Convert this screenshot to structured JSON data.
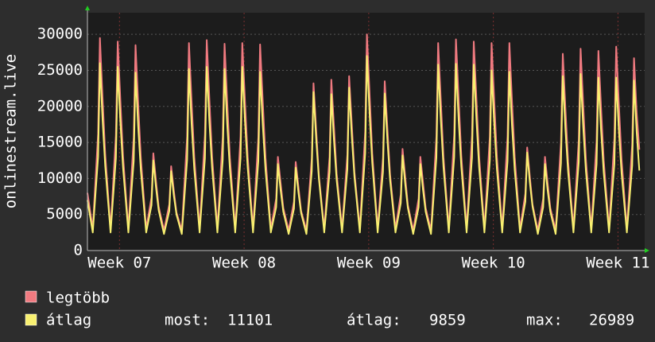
{
  "chart_data": {
    "type": "line",
    "ylabel": "onlinestream.live",
    "xlim": [
      0,
      31.3
    ],
    "ylim": [
      0,
      33000
    ],
    "yticks": [
      0,
      5000,
      10000,
      15000,
      20000,
      25000,
      30000
    ],
    "xticks": [
      {
        "value": 1.8,
        "label": "Week 07"
      },
      {
        "value": 8.8,
        "label": "Week 08"
      },
      {
        "value": 15.8,
        "label": "Week 09"
      },
      {
        "value": 22.8,
        "label": "Week 10"
      },
      {
        "value": 29.8,
        "label": "Week 11"
      }
    ],
    "grid": true,
    "x": [
      0,
      0.3,
      0.6,
      0.7,
      0.85,
      1,
      1.3,
      1.6,
      1.7,
      1.85,
      2,
      2.3,
      2.6,
      2.7,
      2.85,
      3,
      3.3,
      3.6,
      3.7,
      3.85,
      4,
      4.3,
      4.6,
      4.7,
      4.85,
      5,
      5.3,
      5.6,
      5.7,
      5.85,
      6,
      6.3,
      6.6,
      6.7,
      6.85,
      7,
      7.3,
      7.6,
      7.7,
      7.85,
      8,
      8.3,
      8.6,
      8.7,
      8.85,
      9,
      9.3,
      9.6,
      9.7,
      9.85,
      10,
      10.3,
      10.6,
      10.7,
      10.85,
      11,
      11.3,
      11.6,
      11.7,
      11.85,
      12,
      12.3,
      12.6,
      12.7,
      12.85,
      13,
      13.3,
      13.6,
      13.7,
      13.85,
      14,
      14.3,
      14.6,
      14.7,
      14.85,
      15,
      15.3,
      15.6,
      15.7,
      15.85,
      16,
      16.3,
      16.6,
      16.7,
      16.85,
      17,
      17.3,
      17.6,
      17.7,
      17.85,
      18,
      18.3,
      18.6,
      18.7,
      18.85,
      19,
      19.3,
      19.6,
      19.7,
      19.85,
      20,
      20.3,
      20.6,
      20.7,
      20.85,
      21,
      21.3,
      21.6,
      21.7,
      21.85,
      22,
      22.3,
      22.6,
      22.7,
      22.85,
      23,
      23.3,
      23.6,
      23.7,
      23.85,
      24,
      24.3,
      24.6,
      24.7,
      24.85,
      25,
      25.3,
      25.6,
      25.7,
      25.85,
      26,
      26.3,
      26.6,
      26.7,
      26.85,
      27,
      27.3,
      27.6,
      27.7,
      27.85,
      28,
      28.3,
      28.6,
      28.7,
      28.85,
      29,
      29.3,
      29.6,
      29.7,
      29.85,
      30,
      30.3,
      30.6,
      30.7,
      30.85,
      31
    ],
    "series": [
      {
        "name": "legtöbb",
        "color": "#f07a80",
        "values": [
          8000,
          3000,
          16200,
          29500,
          21200,
          13300,
          3000,
          16000,
          29000,
          20900,
          13100,
          3000,
          15700,
          28500,
          20500,
          12800,
          3000,
          7400,
          13500,
          9700,
          6100,
          2800,
          6400,
          11700,
          8400,
          5300,
          2800,
          15800,
          28800,
          20700,
          13000,
          3000,
          16100,
          29200,
          21000,
          13100,
          3000,
          15800,
          28700,
          20700,
          12900,
          3000,
          15800,
          28800,
          20700,
          13000,
          3000,
          15700,
          28600,
          20600,
          12900,
          3000,
          7200,
          13000,
          9400,
          5900,
          2800,
          6800,
          12300,
          8900,
          5500,
          2800,
          12800,
          23200,
          16700,
          10400,
          3000,
          13000,
          23700,
          17100,
          10700,
          3000,
          13300,
          24200,
          17400,
          10900,
          3000,
          16500,
          30000,
          21600,
          13500,
          3000,
          12900,
          23500,
          16900,
          10600,
          3000,
          7800,
          14100,
          10200,
          6300,
          2800,
          7200,
          13000,
          9400,
          5900,
          2800,
          15800,
          28800,
          20700,
          13000,
          3000,
          16100,
          29300,
          21100,
          13200,
          3000,
          16000,
          29000,
          20900,
          13100,
          3000,
          15800,
          28800,
          20700,
          13000,
          3000,
          15800,
          28800,
          20700,
          13000,
          3000,
          7900,
          14300,
          10300,
          6400,
          2800,
          7200,
          13000,
          9400,
          5900,
          2800,
          15000,
          27300,
          19700,
          12300,
          3000,
          15400,
          28000,
          20200,
          12600,
          3000,
          15200,
          27700,
          19900,
          12500,
          3000,
          15600,
          28300,
          20400,
          12700,
          3000,
          14700,
          26700,
          19200,
          14000
        ]
      },
      {
        "name": "átlag",
        "color": "#f8f070",
        "values": [
          7000,
          2500,
          13000,
          26000,
          18200,
          11700,
          2500,
          12800,
          25500,
          17900,
          11500,
          2500,
          12400,
          24700,
          17300,
          11100,
          2500,
          6300,
          12500,
          8800,
          5600,
          2300,
          5500,
          11000,
          7700,
          5000,
          2300,
          12600,
          25200,
          17600,
          11300,
          2500,
          12800,
          25500,
          17900,
          11500,
          2500,
          12600,
          25200,
          17600,
          11300,
          2500,
          12800,
          25500,
          17900,
          11500,
          2500,
          12400,
          24800,
          17400,
          11200,
          2500,
          6000,
          12000,
          8400,
          5400,
          2300,
          5800,
          11500,
          8100,
          5200,
          2300,
          11000,
          22000,
          15400,
          9900,
          2500,
          10900,
          21700,
          15200,
          9800,
          2500,
          11300,
          22600,
          15800,
          10200,
          2500,
          13500,
          27000,
          18900,
          12200,
          2500,
          10900,
          21800,
          15300,
          9800,
          2500,
          6600,
          13200,
          9200,
          5900,
          2300,
          6000,
          12000,
          8400,
          5400,
          2300,
          12900,
          25800,
          18100,
          11600,
          2500,
          13000,
          25900,
          18100,
          11700,
          2500,
          12900,
          25800,
          18100,
          11600,
          2500,
          12500,
          25000,
          17500,
          11300,
          2500,
          12400,
          24800,
          17400,
          11200,
          2500,
          6800,
          13600,
          9500,
          6100,
          2300,
          6000,
          12000,
          8400,
          5400,
          2300,
          12100,
          24200,
          16900,
          10900,
          2500,
          12300,
          24500,
          17200,
          11000,
          2500,
          12000,
          24000,
          16800,
          10800,
          2500,
          12000,
          24000,
          16800,
          10800,
          2500,
          11800,
          23600,
          16500,
          11101
        ]
      }
    ],
    "stats": [
      {
        "label": "most:",
        "value": 11101
      },
      {
        "label": "átlag:",
        "value": 9859
      },
      {
        "label": "max:",
        "value": 26989
      }
    ]
  }
}
